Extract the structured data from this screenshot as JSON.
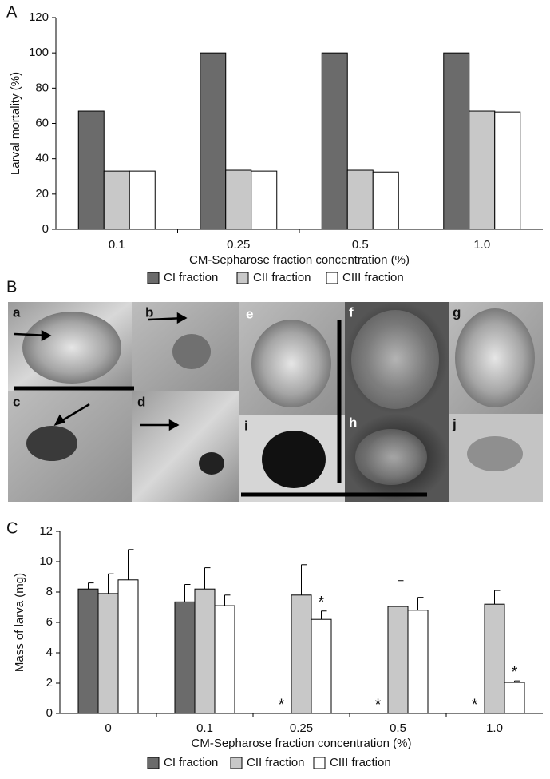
{
  "panel_labels": [
    "A",
    "B",
    "C"
  ],
  "photo_panel": {
    "labels": [
      "a",
      "b",
      "c",
      "d",
      "e",
      "f",
      "g",
      "h",
      "i",
      "j"
    ]
  },
  "chart_data": [
    {
      "type": "bar",
      "x_label": "CM-Sepharose fraction concentration (%)",
      "y_label": "Larval mortality (%)",
      "categories": [
        "0.1",
        "0.25",
        "0.5",
        "1.0"
      ],
      "series": [
        {
          "name": "CI fraction",
          "color": "#6b6b6b",
          "values": [
            67,
            100,
            100,
            100
          ]
        },
        {
          "name": "CII fraction",
          "color": "#c8c8c8",
          "values": [
            33,
            33.5,
            33.5,
            67
          ]
        },
        {
          "name": "CIII fraction",
          "color": "#ffffff",
          "values": [
            33,
            33,
            32.5,
            66.5
          ]
        }
      ],
      "ylim": [
        0,
        120
      ],
      "yticks": [
        0,
        20,
        40,
        60,
        80,
        100,
        120
      ],
      "grid": false,
      "legend": "bottom"
    },
    {
      "type": "bar",
      "x_label": "CM-Sepharose fraction concentration (%)",
      "y_label": "Mass of larva (mg)",
      "categories": [
        "0",
        "0.1",
        "0.25",
        "0.5",
        "1.0"
      ],
      "series": [
        {
          "name": "CI fraction",
          "color": "#6b6b6b",
          "values": [
            8.2,
            7.35,
            0,
            0,
            0
          ],
          "errors": [
            0.4,
            1.15,
            null,
            null,
            null
          ],
          "annotations": [
            null,
            null,
            "*",
            "*",
            "*"
          ]
        },
        {
          "name": "CII fraction",
          "color": "#c8c8c8",
          "values": [
            7.9,
            8.2,
            7.8,
            7.05,
            7.2
          ],
          "errors": [
            1.3,
            1.4,
            2.0,
            1.7,
            0.9
          ],
          "annotations": [
            null,
            null,
            null,
            null,
            null
          ]
        },
        {
          "name": "CIII fraction",
          "color": "#ffffff",
          "values": [
            8.8,
            7.1,
            6.2,
            6.8,
            2.05
          ],
          "errors": [
            2.0,
            0.7,
            0.55,
            0.85,
            0.1
          ],
          "annotations": [
            null,
            null,
            "*",
            null,
            "*"
          ]
        }
      ],
      "ylim": [
        0,
        12
      ],
      "yticks": [
        0,
        2,
        4,
        6,
        8,
        10,
        12
      ],
      "grid": false,
      "legend": "bottom"
    }
  ]
}
